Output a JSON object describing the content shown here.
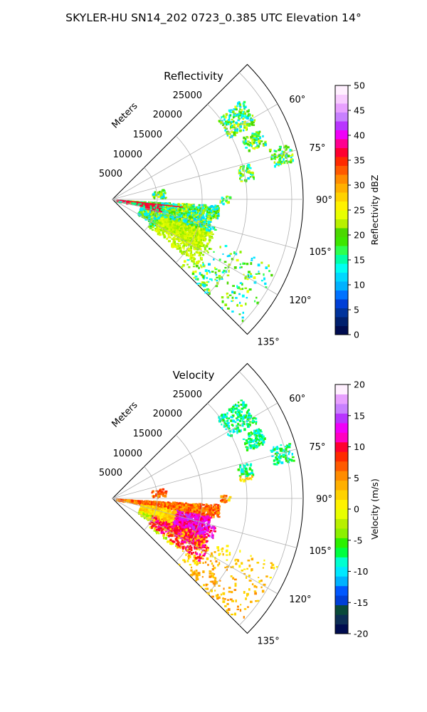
{
  "header": {
    "title": "SKYLER-HU  SN14_202  0723_0.385 UTC Elevation 14°"
  },
  "chart_data": [
    {
      "type": "polar-wedge",
      "title": "Reflectivity",
      "range_label": "Meters",
      "range_ticks": [
        "5000",
        "10000",
        "15000",
        "20000",
        "25000"
      ],
      "azimuth_ticks": [
        "60°",
        "75°",
        "90°",
        "105°",
        "120°",
        "135°"
      ],
      "azimuth_range_deg": [
        45,
        135
      ],
      "colorbar": {
        "label": "Reflectivity dBZ",
        "ticks": [
          "0",
          "5",
          "10",
          "15",
          "20",
          "25",
          "30",
          "35",
          "40",
          "45",
          "50"
        ],
        "range": [
          0,
          50
        ],
        "colors": [
          "#000c50",
          "#00206e",
          "#00339c",
          "#003fd6",
          "#0072ff",
          "#00b2ff",
          "#00d8ff",
          "#00fff2",
          "#00ffa6",
          "#2dff4e",
          "#3de600",
          "#4bd800",
          "#b8f000",
          "#e8ff00",
          "#fff200",
          "#ffd200",
          "#ffb000",
          "#ff8c00",
          "#ff5a00",
          "#ff2a00",
          "#ff0030",
          "#ff0090",
          "#f000f8",
          "#b835ff",
          "#c880ff",
          "#e8a0ff",
          "#f8ccff",
          "#fff0ff"
        ]
      }
    },
    {
      "type": "polar-wedge",
      "title": "Velocity",
      "range_label": "Meters",
      "range_ticks": [
        "5000",
        "10000",
        "15000",
        "20000",
        "25000"
      ],
      "azimuth_ticks": [
        "60°",
        "75°",
        "90°",
        "105°",
        "120°",
        "135°"
      ],
      "azimuth_range_deg": [
        45,
        135
      ],
      "colorbar": {
        "label": "Velocity (m/s)",
        "ticks": [
          "-20",
          "-15",
          "-10",
          "-5",
          "0",
          "5",
          "10",
          "15",
          "20"
        ],
        "range": [
          -20,
          20
        ],
        "colors": [
          "#000c50",
          "#0d2e55",
          "#0a4a3a",
          "#003fd6",
          "#0058ff",
          "#00b2ff",
          "#00e8ff",
          "#00ffd0",
          "#00ff40",
          "#2cf000",
          "#8cf000",
          "#b8f000",
          "#e8ff00",
          "#fff200",
          "#ffd200",
          "#ffb000",
          "#ff8c00",
          "#ff5a00",
          "#ff2a00",
          "#ff0030",
          "#ff00c0",
          "#f000f8",
          "#b835ff",
          "#c880ff",
          "#e8a0ff",
          "#fff0ff"
        ]
      }
    }
  ]
}
